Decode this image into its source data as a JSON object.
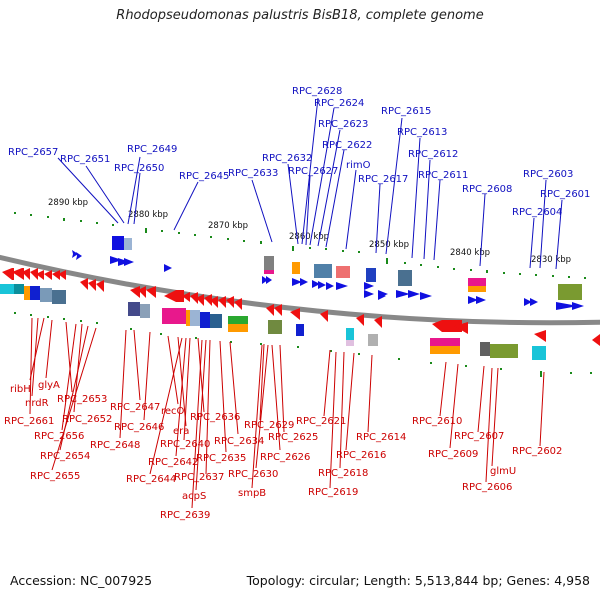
{
  "title": "Rhodopseudomonas palustris BisB18, complete genome",
  "footer": {
    "accession": "Accession: NC_007925",
    "summary": "Topology: circular; Length: 5,513,844 bp; Genes: 4,958"
  },
  "ticks": [
    "2890 kbp",
    "2880 kbp",
    "2870 kbp",
    "2860 kbp",
    "2850 kbp",
    "2840 kbp",
    "2830 kbp"
  ],
  "upper_labels": [
    "RPC_2657",
    "RPC_2651",
    "RPC_2649",
    "RPC_2650",
    "RPC_2645",
    "RPC_2633",
    "RPC_2632",
    "RPC_2628",
    "RPC_2624",
    "RPC_2623",
    "RPC_2622",
    "rimO",
    "RPC_2627",
    "RPC_2615",
    "RPC_2613",
    "RPC_2612",
    "RPC_2617",
    "RPC_2611",
    "RPC_2608",
    "RPC_2603",
    "RPC_2601",
    "RPC_2604"
  ],
  "lower_labels": [
    "ribH",
    "glyA",
    "nrdR",
    "RPC_2653",
    "RPC_2661",
    "RPC_2652",
    "RPC_2656",
    "RPC_2654",
    "RPC_2655",
    "RPC_2647",
    "RPC_2646",
    "RPC_2648",
    "recO",
    "era",
    "RPC_2636",
    "RPC_2640",
    "RPC_2642",
    "RPC_2644",
    "RPC_2637",
    "acpS",
    "RPC_2639",
    "RPC_2635",
    "RPC_2634",
    "RPC_2629",
    "RPC_2625",
    "RPC_2626",
    "RPC_2630",
    "smpB",
    "RPC_2621",
    "RPC_2618",
    "RPC_2619",
    "RPC_2616",
    "RPC_2614",
    "RPC_2610",
    "RPC_2609",
    "RPC_2607",
    "glmU",
    "RPC_2606",
    "RPC_2602"
  ],
  "colors": {
    "forward": "#1010e0",
    "reverse": "#ee1010",
    "backbone": "#808080",
    "tick": "#1a8a1a"
  }
}
